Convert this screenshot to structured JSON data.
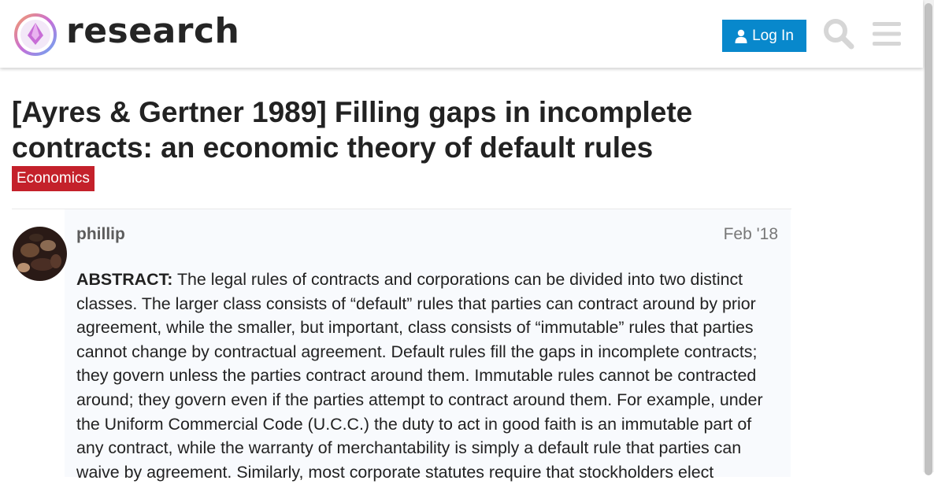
{
  "header": {
    "site_name": "research",
    "login_label": "Log In",
    "icons": [
      "research-logo-icon",
      "user-icon",
      "search-icon",
      "hamburger-menu-icon"
    ],
    "colors": {
      "login_button": "#0888cc",
      "icon_gray": "#d6d6d6"
    }
  },
  "topic": {
    "title": "[Ayres & Gertner 1989] Filling gaps in incomplete contracts: an economic theory of default rules",
    "category": "Economics",
    "category_color": "#c4212b"
  },
  "post": {
    "username": "phillip",
    "date": "Feb '18",
    "abstract_label": "ABSTRACT:",
    "abstract_text": " The legal rules of contracts and corporations can be divided into two distinct classes. The larger class consists of “default” rules that parties can contract around by prior agreement, while the smaller, but important, class consists of “immutable” rules that parties cannot change by contractual agreement. Default rules fill the gaps in incomplete contracts; they govern unless the parties contract around them. Immutable rules cannot be contracted around; they govern even if the parties attempt to contract around them. For example, under the Uniform Commercial Code (U.C.C.) the duty to act in good faith is an immutable part of any contract, while the warranty of merchantability is simply a default rule that parties can waive by agreement. Similarly, most corporate statutes require that stockholders elect"
  }
}
